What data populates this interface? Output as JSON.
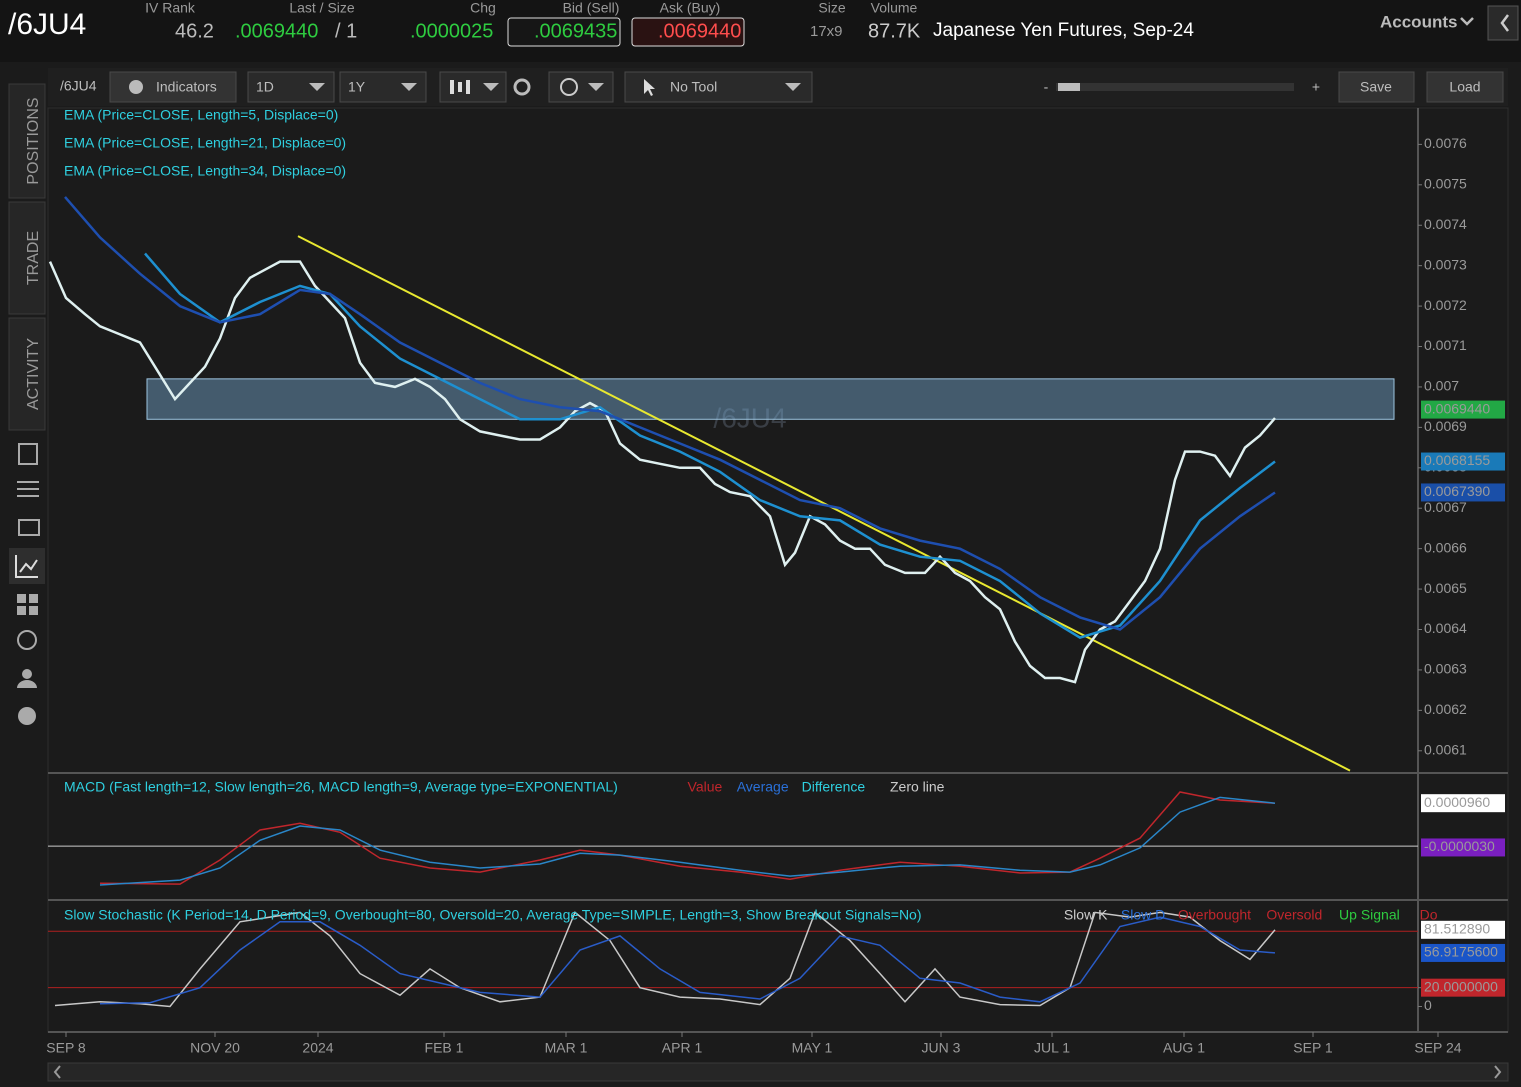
{
  "header": {
    "symbol": "/6JU4",
    "fields": [
      {
        "label": "IV Rank",
        "value": "46.2"
      },
      {
        "label": "Last / Size",
        "value": ".0069440",
        "extra": "/ 1"
      },
      {
        "label": "Chg",
        "value": ".0000025"
      },
      {
        "label": "Bid (Sell)",
        "value": ".0069435"
      },
      {
        "label": "Ask (Buy)",
        "value": ".0069440"
      },
      {
        "label": "Size",
        "value": "17x9"
      },
      {
        "label": "Volume",
        "value": "87.7K"
      }
    ],
    "description": "Japanese Yen Futures, Sep-24",
    "accounts": "Accounts"
  },
  "sidebar": {
    "tabs": [
      "POSITIONS",
      "TRADE",
      "ACTIVITY"
    ]
  },
  "toolbar": {
    "symbol": "/6JU4",
    "indicators": "Indicators",
    "aggregation": "1D",
    "period": "1Y",
    "tool": "No Tool",
    "zoom_out": "-",
    "zoom_in": "+",
    "save": "Save",
    "load": "Load"
  },
  "chart_data": [
    {
      "type": "line",
      "watermark": "/6JU4",
      "xlim": [
        0,
        1370
      ],
      "ylim": [
        0.00605,
        0.00769
      ],
      "yticks": [
        0.0061,
        0.0062,
        0.0063,
        0.0064,
        0.0065,
        0.0066,
        0.0067,
        0.0068,
        0.0069,
        0.007,
        0.0071,
        0.0072,
        0.0073,
        0.0074,
        0.0075,
        0.0076
      ],
      "xticks": [
        {
          "value": 18,
          "label": "SEP 8"
        },
        {
          "value": 167,
          "label": "NOV 20"
        },
        {
          "value": 270,
          "label": "2024"
        },
        {
          "value": 396,
          "label": "FEB 1"
        },
        {
          "value": 518,
          "label": "MAR 1"
        },
        {
          "value": 634,
          "label": "APR 1"
        },
        {
          "value": 764,
          "label": "MAY 1"
        },
        {
          "value": 893,
          "label": "JUN 3"
        },
        {
          "value": 1004,
          "label": "JUL 1"
        },
        {
          "value": 1136,
          "label": "AUG 1"
        },
        {
          "value": 1265,
          "label": "SEP 1"
        },
        {
          "value": 1390,
          "label": "SEP 24"
        }
      ],
      "series": [
        {
          "name": "EMA (Price=CLOSE, Length=5, Displace=0)",
          "color": "#dff0f0",
          "x": [
            2,
            18,
            37,
            52,
            72,
            92,
            112,
            127,
            142,
            157,
            172,
            187,
            202,
            217,
            232,
            252,
            267,
            282,
            297,
            312,
            327,
            347,
            367,
            382,
            397,
            412,
            432,
            452,
            472,
            492,
            512,
            527,
            542,
            557,
            572,
            592,
            612,
            632,
            652,
            667,
            682,
            702,
            722,
            737,
            747,
            762,
            777,
            792,
            807,
            822,
            837,
            857,
            877,
            892,
            907,
            922,
            937,
            952,
            967,
            982,
            997,
            1012,
            1027,
            1037,
            1052,
            1067,
            1082,
            1097,
            1112,
            1127,
            1137,
            1152,
            1167,
            1182,
            1197,
            1212,
            1227
          ],
          "values": [
            0.00731,
            0.00722,
            0.00718,
            0.00715,
            0.00713,
            0.00711,
            0.00703,
            0.00697,
            0.00701,
            0.00705,
            0.00712,
            0.00722,
            0.00727,
            0.00729,
            0.00731,
            0.00731,
            0.00725,
            0.00721,
            0.00717,
            0.00706,
            0.00701,
            0.007,
            0.00702,
            0.007,
            0.00697,
            0.00692,
            0.00689,
            0.00688,
            0.00687,
            0.00687,
            0.0069,
            0.00694,
            0.00696,
            0.00694,
            0.00686,
            0.00682,
            0.00681,
            0.0068,
            0.0068,
            0.00676,
            0.00674,
            0.00673,
            0.00668,
            0.00656,
            0.00659,
            0.00668,
            0.00666,
            0.00662,
            0.0066,
            0.0066,
            0.00656,
            0.00654,
            0.00654,
            0.00658,
            0.00654,
            0.00652,
            0.00648,
            0.00645,
            0.00637,
            0.00631,
            0.00628,
            0.00628,
            0.00627,
            0.00635,
            0.0064,
            0.00642,
            0.00647,
            0.00652,
            0.0066,
            0.00677,
            0.00684,
            0.00684,
            0.00683,
            0.00678,
            0.00685,
            0.00688,
            0.006923
          ]
        },
        {
          "name": "EMA (Price=CLOSE, Length=21, Displace=0)",
          "color": "#1e90d0",
          "x": [
            97,
            132,
            172,
            212,
            252,
            282,
            312,
            352,
            392,
            432,
            472,
            512,
            552,
            592,
            632,
            672,
            712,
            752,
            792,
            832,
            872,
            912,
            952,
            992,
            1032,
            1072,
            1112,
            1152,
            1192,
            1227
          ],
          "values": [
            0.00733,
            0.00723,
            0.00716,
            0.00721,
            0.00725,
            0.00723,
            0.00715,
            0.00707,
            0.00702,
            0.00697,
            0.00692,
            0.00692,
            0.00695,
            0.00688,
            0.00684,
            0.00679,
            0.00672,
            0.00668,
            0.00667,
            0.00661,
            0.00658,
            0.00657,
            0.00652,
            0.00644,
            0.00638,
            0.00641,
            0.00652,
            0.00667,
            0.00675,
            0.0068155
          ]
        },
        {
          "name": "EMA (Price=CLOSE, Length=34, Displace=0)",
          "color": "#1e4fb0",
          "x": [
            17,
            52,
            92,
            132,
            172,
            212,
            252,
            282,
            312,
            352,
            392,
            432,
            472,
            512,
            552,
            592,
            632,
            672,
            712,
            752,
            792,
            832,
            872,
            912,
            952,
            992,
            1032,
            1072,
            1112,
            1152,
            1192,
            1227
          ],
          "values": [
            0.00747,
            0.00737,
            0.00728,
            0.0072,
            0.00716,
            0.00718,
            0.00724,
            0.00723,
            0.00718,
            0.00711,
            0.00706,
            0.00701,
            0.00697,
            0.00695,
            0.00694,
            0.0069,
            0.00686,
            0.00682,
            0.00677,
            0.00672,
            0.0067,
            0.00665,
            0.00662,
            0.0066,
            0.00655,
            0.00648,
            0.00643,
            0.0064,
            0.00648,
            0.0066,
            0.00668,
            0.006739
          ]
        }
      ],
      "zone": {
        "x": [
          99,
          1346
        ],
        "values": [
          0.00692,
          0.00702
        ]
      },
      "trendline": {
        "x": [
          250,
          1302
        ],
        "values": [
          0.007373,
          0.006051
        ],
        "color": "#e8e830"
      },
      "price_labels": [
        {
          "value": 0.006944,
          "label": "0.0069440"
        },
        {
          "value": 0.0068155,
          "label": "0.0068155"
        },
        {
          "value": 0.006739,
          "label": "0.0067390"
        }
      ]
    },
    {
      "type": "line",
      "title": "MACD (Fast length=12, Slow length=26, MACD length=9, Average type=EXPONENTIAL)",
      "xlim": [
        0,
        1370
      ],
      "ylim": [
        -0.000116,
        0.000159
      ],
      "zero_line": 0,
      "series": [
        {
          "name": "Value",
          "color": "#c0262c",
          "x": [
            52,
            132,
            172,
            212,
            252,
            292,
            332,
            382,
            432,
            492,
            532,
            572,
            632,
            692,
            742,
            792,
            852,
            912,
            972,
            1022,
            1052,
            1092,
            1132,
            1172,
            1227
          ],
          "values": [
            -8.3e-05,
            -8.5e-05,
            -3.1e-05,
            3.6e-05,
            5.1e-05,
            3.1e-05,
            -2.7e-05,
            -4.9e-05,
            -5.8e-05,
            -3.1e-05,
            -9e-06,
            -2e-05,
            -4.5e-05,
            -5.8e-05,
            -7.4e-05,
            -5.4e-05,
            -3.6e-05,
            -4.5e-05,
            -6e-05,
            -5.8e-05,
            -2.7e-05,
            1.8e-05,
            0.000121,
            0.000103,
            9.6e-05
          ]
        },
        {
          "name": "Average",
          "color": "#2a86c8",
          "x": [
            52,
            132,
            172,
            212,
            252,
            292,
            332,
            382,
            432,
            492,
            532,
            572,
            632,
            692,
            742,
            792,
            852,
            912,
            972,
            1022,
            1052,
            1092,
            1132,
            1172,
            1227
          ],
          "values": [
            -8.7e-05,
            -7.6e-05,
            -4.9e-05,
            1.3e-05,
            4.5e-05,
            3.6e-05,
            -9e-06,
            -3.6e-05,
            -4.9e-05,
            -4e-05,
            -1.6e-05,
            -2e-05,
            -3.6e-05,
            -5.4e-05,
            -6.7e-05,
            -5.8e-05,
            -4.5e-05,
            -4.2e-05,
            -5.4e-05,
            -5.8e-05,
            -4.2e-05,
            -4e-06,
            7.6e-05,
            0.000109,
            9.6e-05
          ]
        }
      ],
      "legend_extra": [
        "Difference",
        "Zero line"
      ],
      "price_labels": [
        {
          "value": 9.6e-05,
          "label": "0.0000960"
        },
        {
          "value": -3e-06,
          "label": "-0.0000030"
        }
      ]
    },
    {
      "type": "line",
      "title": "Slow Stochastic (K Period=14, D Period=9, Overbought=80, Oversold=20, Average Type=SIMPLE, Length=3, Show Breakout Signals=No)",
      "xlim": [
        0,
        1370
      ],
      "ylim": [
        -25,
        110
      ],
      "yticks": [
        0,
        {
          "value": 20,
          "label": "20.0000000"
        }
      ],
      "levels": [
        80,
        20
      ],
      "series": [
        {
          "name": "Slow K",
          "color": "#c8c8c8",
          "x": [
            7,
            52,
            92,
            122,
            152,
            192,
            222,
            252,
            282,
            312,
            352,
            382,
            412,
            452,
            492,
            527,
            562,
            592,
            632,
            672,
            712,
            742,
            767,
            802,
            832,
            857,
            887,
            912,
            952,
            992,
            1022,
            1047,
            1082,
            1112,
            1142,
            1172,
            1202,
            1227
          ],
          "values": [
            1,
            5,
            3,
            0,
            40,
            90,
            95,
            100,
            75,
            35,
            12,
            40,
            20,
            5,
            10,
            100,
            70,
            20,
            10,
            8,
            2,
            30,
            100,
            70,
            35,
            5,
            40,
            10,
            2,
            1,
            20,
            100,
            95,
            100,
            95,
            70,
            50,
            81.51289
          ]
        },
        {
          "name": "Slow D",
          "color": "#2a5cc8",
          "x": [
            52,
            102,
            152,
            192,
            232,
            272,
            312,
            352,
            392,
            432,
            492,
            532,
            572,
            612,
            652,
            712,
            752,
            792,
            832,
            872,
            912,
            952,
            992,
            1032,
            1072,
            1112,
            1152,
            1192,
            1227
          ],
          "values": [
            3,
            4,
            20,
            60,
            90,
            90,
            65,
            35,
            25,
            15,
            10,
            60,
            75,
            40,
            15,
            8,
            30,
            75,
            65,
            30,
            25,
            10,
            5,
            25,
            85,
            95,
            85,
            60,
            56.91756
          ]
        }
      ],
      "legend_extra": [
        "Overbought",
        "Oversold",
        "Up Signal",
        "Do"
      ],
      "price_labels": [
        {
          "value": 81.51289,
          "label": "81.512890"
        },
        {
          "value": 56.91756,
          "label": "56.9175600"
        }
      ]
    }
  ]
}
